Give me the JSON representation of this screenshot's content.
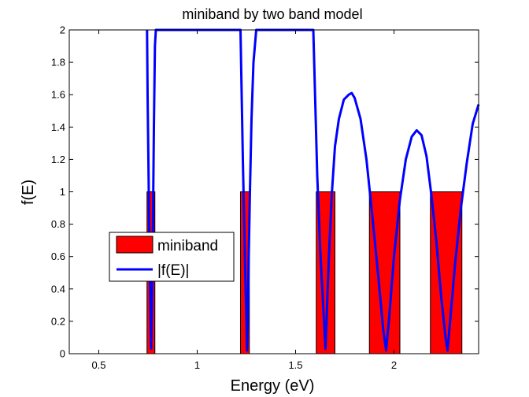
{
  "chart_data": {
    "type": "bar",
    "title": "miniband by two band model",
    "xlabel": "Energy (eV)",
    "ylabel": "f(E)",
    "xlim": [
      0.35,
      2.43
    ],
    "ylim": [
      0,
      2
    ],
    "xticks": [
      0.5,
      1,
      1.5,
      2
    ],
    "xtick_labels": [
      "0.5",
      "1",
      "1.5",
      "2"
    ],
    "yticks": [
      0,
      0.2,
      0.4,
      0.6,
      0.8,
      1,
      1.2,
      1.4,
      1.6,
      1.8,
      2
    ],
    "ytick_labels": [
      "0",
      "0.2",
      "0.4",
      "0.6",
      "0.8",
      "1",
      "1.2",
      "1.4",
      "1.6",
      "1.8",
      "2"
    ],
    "grid": false,
    "legend_position": "left-center",
    "colors": {
      "miniband": "#ff0000",
      "curve": "#0000ff"
    },
    "series": [
      {
        "name": "miniband",
        "kind": "band",
        "bands": [
          [
            0.745,
            0.785
          ],
          [
            1.22,
            1.265
          ],
          [
            1.605,
            1.7
          ],
          [
            1.875,
            2.03
          ],
          [
            2.185,
            2.345
          ]
        ],
        "value": 1
      },
      {
        "name": "|f(E)|",
        "kind": "line",
        "x": [
          0.745,
          0.748,
          0.752,
          0.756,
          0.76,
          0.763,
          0.766,
          0.77,
          0.775,
          0.78,
          0.785,
          0.79,
          1.22,
          1.226,
          1.232,
          1.238,
          1.244,
          1.249,
          1.253,
          1.257,
          1.262,
          1.268,
          1.276,
          1.286,
          1.3,
          1.59,
          1.6,
          1.61,
          1.625,
          1.64,
          1.652,
          1.66,
          1.67,
          1.685,
          1.7,
          1.72,
          1.745,
          1.77,
          1.785,
          1.8,
          1.83,
          1.86,
          1.89,
          1.92,
          1.945,
          1.96,
          1.975,
          2.0,
          2.03,
          2.06,
          2.09,
          2.115,
          2.14,
          2.165,
          2.19,
          2.215,
          2.24,
          2.262,
          2.272,
          2.285,
          2.31,
          2.34,
          2.37,
          2.4,
          2.43
        ],
        "y": [
          2.0,
          1.6,
          1.2,
          0.8,
          0.45,
          0.2,
          0.03,
          0.3,
          0.8,
          1.4,
          1.9,
          2.0,
          2.0,
          1.6,
          1.2,
          0.85,
          0.5,
          0.25,
          0.02,
          0.25,
          0.6,
          1.0,
          1.45,
          1.8,
          2.0,
          2.0,
          1.55,
          1.1,
          0.65,
          0.3,
          0.03,
          0.3,
          0.62,
          1.0,
          1.28,
          1.45,
          1.57,
          1.6,
          1.61,
          1.58,
          1.45,
          1.2,
          0.85,
          0.48,
          0.15,
          0.02,
          0.22,
          0.6,
          0.95,
          1.2,
          1.34,
          1.38,
          1.35,
          1.22,
          0.98,
          0.7,
          0.35,
          0.1,
          0.02,
          0.2,
          0.55,
          0.9,
          1.18,
          1.42,
          1.54
        ]
      }
    ]
  }
}
